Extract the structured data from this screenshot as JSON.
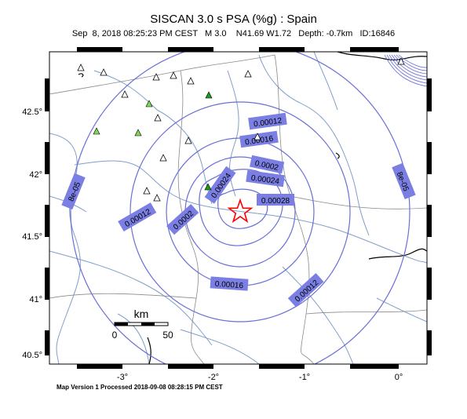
{
  "header": {
    "title": "SISCAN 3.0 s PSA (%g) : Spain",
    "info_line": "Sep  8, 2018 08:25:23 PM CEST   M 3.0    N41.69 W1.72   Depth: -0.7km   ID:16846"
  },
  "footer": {
    "text": "Map Version 1 Processed 2018-09-08 08:28:15 PM CEST"
  },
  "axes": {
    "x_ticks": [
      "-3°",
      "-2°",
      "-1°",
      "0°"
    ],
    "y_ticks": [
      "42.5°",
      "42°",
      "41.5°",
      "41°",
      "40.5°"
    ]
  },
  "scale_bar": {
    "unit": "km",
    "start_label": "0",
    "end_label": "50"
  },
  "contour_labels": [
    "8e-05",
    "0.00012",
    "0.00016",
    "0.0002",
    "0.00024",
    "0.00028"
  ],
  "epicenter": {
    "lat": 41.69,
    "lon": -1.72,
    "magnitude": 3.0,
    "depth_km": -0.7,
    "marker_icon": "star-icon",
    "marker_color": "#ff0000"
  },
  "colors": {
    "contour": "#6a6fd6",
    "label_bg": "#7b7fe3",
    "rivers": "#7f9fc9",
    "borders": "#8a8a8a",
    "station_green": "#7ed957",
    "station_dark_green": "#1f9a1f"
  }
}
